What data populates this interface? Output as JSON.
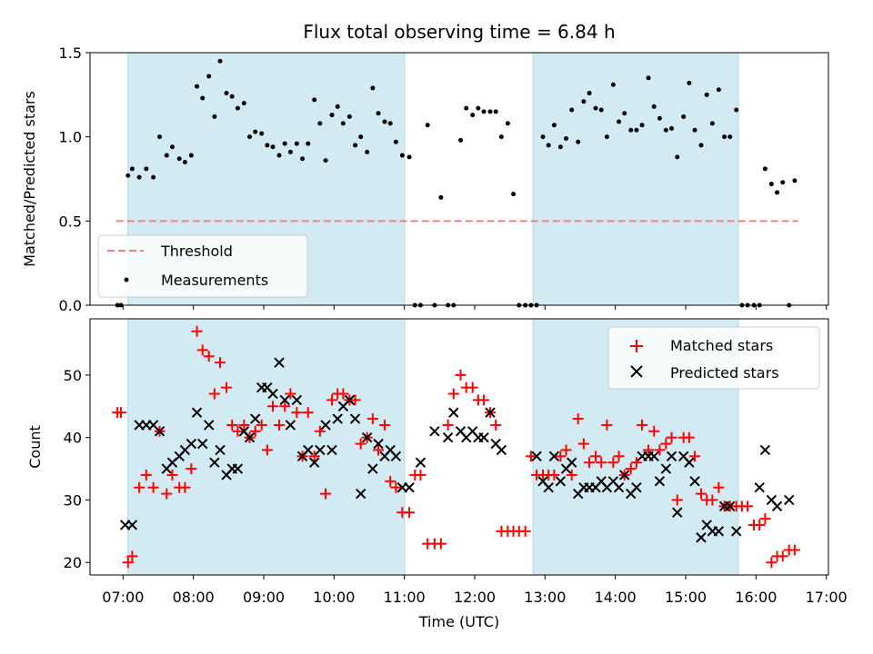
{
  "chart_data": [
    {
      "type": "scatter",
      "title": "Flux total observing time = 6.84 h",
      "xlabel": "",
      "ylabel": "Matched/Predicted stars",
      "xlim_hours": [
        6.53,
        17.03
      ],
      "ylim": [
        0.0,
        1.5
      ],
      "yticks": [
        0.0,
        0.5,
        1.0,
        1.5
      ],
      "ytick_labels": [
        "0.0",
        "0.5",
        "1.0",
        "1.5"
      ],
      "shaded_intervals_hours": [
        [
          7.07,
          11.0
        ],
        [
          12.83,
          15.75
        ]
      ],
      "shade_color": "#add8e6",
      "threshold": {
        "name": "Threshold",
        "value": 0.5,
        "x_range_hours": [
          6.9,
          16.6
        ],
        "color": "#f08080"
      },
      "legend": {
        "position": "lower-left",
        "entries": [
          "Threshold",
          "Measurements"
        ]
      },
      "series": [
        {
          "name": "Measurements",
          "color": "#000000",
          "x_hours": [
            6.92,
            6.97,
            7.07,
            7.13,
            7.23,
            7.33,
            7.43,
            7.52,
            7.62,
            7.7,
            7.8,
            7.88,
            7.97,
            8.05,
            8.13,
            8.22,
            8.3,
            8.38,
            8.47,
            8.55,
            8.63,
            8.72,
            8.8,
            8.88,
            8.97,
            9.05,
            9.13,
            9.22,
            9.3,
            9.38,
            9.47,
            9.55,
            9.63,
            9.72,
            9.8,
            9.88,
            9.97,
            10.05,
            10.13,
            10.22,
            10.3,
            10.38,
            10.47,
            10.55,
            10.63,
            10.72,
            10.8,
            10.88,
            10.97,
            11.07,
            11.15,
            11.23,
            11.33,
            11.43,
            11.52,
            11.62,
            11.7,
            11.8,
            11.88,
            11.97,
            12.05,
            12.13,
            12.22,
            12.3,
            12.38,
            12.47,
            12.55,
            12.63,
            12.72,
            12.8,
            12.88,
            12.97,
            13.05,
            13.13,
            13.22,
            13.3,
            13.38,
            13.47,
            13.55,
            13.63,
            13.72,
            13.8,
            13.88,
            13.97,
            14.05,
            14.13,
            14.22,
            14.3,
            14.38,
            14.47,
            14.55,
            14.63,
            14.72,
            14.8,
            14.88,
            14.97,
            15.05,
            15.13,
            15.22,
            15.3,
            15.38,
            15.47,
            15.55,
            15.63,
            15.72,
            15.8,
            15.88,
            15.97,
            16.05,
            16.13,
            16.22,
            16.3,
            16.38,
            16.47,
            16.55
          ],
          "y": [
            0.0,
            0.0,
            0.77,
            0.81,
            0.76,
            0.81,
            0.76,
            1.0,
            0.89,
            0.94,
            0.87,
            0.85,
            0.89,
            1.3,
            1.23,
            1.36,
            1.12,
            1.45,
            1.26,
            1.24,
            1.17,
            1.2,
            1.0,
            1.03,
            1.02,
            0.95,
            0.94,
            0.89,
            0.96,
            0.91,
            0.96,
            0.87,
            0.96,
            1.22,
            1.08,
            0.86,
            1.13,
            1.18,
            1.08,
            1.12,
            0.95,
            1.0,
            0.91,
            1.29,
            1.14,
            1.09,
            1.08,
            0.97,
            0.89,
            0.88,
            0.0,
            0.0,
            1.07,
            0.0,
            0.64,
            0.0,
            0.0,
            0.98,
            1.17,
            1.13,
            1.17,
            1.15,
            1.15,
            1.15,
            1.0,
            1.08,
            0.66,
            0.0,
            0.0,
            0.0,
            0.0,
            1.0,
            0.95,
            1.07,
            0.94,
            0.99,
            1.16,
            0.97,
            1.21,
            1.26,
            1.17,
            1.16,
            1.0,
            1.31,
            1.09,
            1.14,
            1.04,
            1.04,
            1.07,
            1.35,
            1.18,
            1.11,
            1.04,
            1.05,
            0.88,
            1.12,
            1.32,
            1.04,
            0.95,
            1.25,
            1.08,
            1.28,
            1.0,
            1.0,
            1.16,
            0.0,
            0.0,
            0.0,
            0.0,
            0.81,
            0.72,
            0.67,
            0.73,
            0.0,
            0.74
          ]
        }
      ]
    },
    {
      "type": "scatter",
      "title": "",
      "xlabel": "Time (UTC)",
      "ylabel": "Count",
      "xlim_hours": [
        6.53,
        17.03
      ],
      "ylim": [
        18,
        59
      ],
      "yticks": [
        20,
        30,
        40,
        50
      ],
      "ytick_labels": [
        "20",
        "30",
        "40",
        "50"
      ],
      "xticks_hours": [
        7,
        8,
        9,
        10,
        11,
        12,
        13,
        14,
        15,
        16,
        17
      ],
      "xtick_labels": [
        "07:00",
        "08:00",
        "09:00",
        "10:00",
        "11:00",
        "12:00",
        "13:00",
        "14:00",
        "15:00",
        "16:00",
        "17:00"
      ],
      "shaded_intervals_hours": [
        [
          7.07,
          11.0
        ],
        [
          12.83,
          15.75
        ]
      ],
      "shade_color": "#add8e6",
      "legend": {
        "position": "top-right",
        "entries": [
          "Matched stars",
          "Predicted stars"
        ]
      },
      "series": [
        {
          "name": "Matched stars",
          "marker": "plus",
          "color": "#ff0000",
          "x_hours": [
            6.92,
            6.97,
            7.07,
            7.13,
            7.23,
            7.33,
            7.43,
            7.52,
            7.62,
            7.7,
            7.8,
            7.88,
            7.97,
            8.05,
            8.13,
            8.22,
            8.3,
            8.38,
            8.47,
            8.55,
            8.63,
            8.72,
            8.8,
            8.88,
            8.97,
            9.05,
            9.13,
            9.22,
            9.3,
            9.38,
            9.47,
            9.55,
            9.63,
            9.72,
            9.8,
            9.88,
            9.97,
            10.05,
            10.13,
            10.22,
            10.3,
            10.38,
            10.47,
            10.55,
            10.63,
            10.72,
            10.8,
            10.88,
            10.97,
            11.07,
            11.15,
            11.23,
            11.33,
            11.43,
            11.52,
            11.62,
            11.7,
            11.8,
            11.88,
            11.97,
            12.05,
            12.13,
            12.22,
            12.3,
            12.38,
            12.47,
            12.55,
            12.63,
            12.72,
            12.8,
            12.88,
            12.97,
            13.05,
            13.13,
            13.22,
            13.3,
            13.38,
            13.47,
            13.55,
            13.63,
            13.72,
            13.8,
            13.88,
            13.97,
            14.05,
            14.13,
            14.22,
            14.3,
            14.38,
            14.47,
            14.55,
            14.63,
            14.72,
            14.8,
            14.88,
            14.97,
            15.05,
            15.13,
            15.22,
            15.3,
            15.38,
            15.47,
            15.55,
            15.63,
            15.72,
            15.8,
            15.88,
            15.97,
            16.05,
            16.13,
            16.22,
            16.3,
            16.38,
            16.47,
            16.55
          ],
          "y": [
            44,
            44,
            20,
            21,
            32,
            34,
            32,
            41,
            31,
            34,
            32,
            32,
            35,
            57,
            54,
            53,
            47,
            52,
            48,
            42,
            41,
            42,
            40,
            41,
            42,
            38,
            45,
            42,
            45,
            47,
            44,
            37,
            44,
            37,
            41,
            31,
            46,
            47,
            47,
            46,
            46,
            39,
            40,
            43,
            38,
            42,
            33,
            32,
            28,
            28,
            34,
            34,
            23,
            23,
            23,
            42,
            47,
            50,
            48,
            48,
            46,
            46,
            44,
            42,
            25,
            25,
            25,
            25,
            25,
            37,
            34,
            34,
            34,
            34,
            37,
            38,
            34,
            43,
            39,
            36,
            37,
            36,
            42,
            36,
            37,
            34,
            35,
            36,
            42,
            38,
            41,
            38,
            39,
            40,
            30,
            40,
            40,
            37,
            31,
            30,
            30,
            32,
            29,
            29,
            29,
            29,
            29,
            26,
            26,
            27,
            20,
            21,
            21,
            22,
            22
          ]
        },
        {
          "name": "Predicted stars",
          "marker": "x",
          "color": "#000000",
          "x_hours": [
            7.03,
            7.13,
            7.23,
            7.33,
            7.43,
            7.52,
            7.62,
            7.7,
            7.8,
            7.88,
            7.97,
            8.05,
            8.13,
            8.22,
            8.3,
            8.38,
            8.47,
            8.55,
            8.63,
            8.72,
            8.8,
            8.88,
            8.97,
            9.05,
            9.13,
            9.22,
            9.3,
            9.38,
            9.47,
            9.55,
            9.63,
            9.72,
            9.8,
            9.88,
            9.97,
            10.05,
            10.13,
            10.22,
            10.3,
            10.38,
            10.47,
            10.55,
            10.63,
            10.72,
            10.8,
            10.88,
            10.97,
            11.07,
            11.23,
            11.43,
            11.62,
            11.7,
            11.8,
            11.88,
            11.97,
            12.05,
            12.13,
            12.22,
            12.3,
            12.38,
            12.88,
            12.97,
            13.05,
            13.13,
            13.22,
            13.3,
            13.38,
            13.47,
            13.55,
            13.63,
            13.72,
            13.8,
            13.88,
            13.97,
            14.05,
            14.13,
            14.22,
            14.3,
            14.38,
            14.47,
            14.55,
            14.63,
            14.72,
            14.8,
            14.88,
            14.97,
            15.05,
            15.13,
            15.22,
            15.3,
            15.38,
            15.47,
            15.55,
            15.63,
            15.72,
            16.05,
            16.13,
            16.22,
            16.3,
            16.47
          ],
          "y": [
            26,
            26,
            42,
            42,
            42,
            41,
            35,
            36,
            37,
            38,
            39,
            44,
            39,
            42,
            36,
            38,
            34,
            35,
            35,
            41,
            40,
            43,
            48,
            48,
            47,
            52,
            46,
            42,
            46,
            37,
            38,
            36,
            38,
            42,
            38,
            43,
            45,
            46,
            43,
            31,
            40,
            35,
            39,
            37,
            38,
            37,
            32,
            32,
            36,
            41,
            40,
            44,
            41,
            40,
            41,
            40,
            40,
            44,
            39,
            38,
            37,
            33,
            32,
            37,
            33,
            35,
            36,
            31,
            32,
            32,
            32,
            33,
            32,
            33,
            32,
            34,
            31,
            32,
            37,
            37,
            37,
            33,
            35,
            37,
            28,
            37,
            36,
            33,
            24,
            26,
            25,
            25,
            29,
            29,
            25,
            32,
            38,
            30,
            29,
            30
          ]
        }
      ]
    }
  ]
}
